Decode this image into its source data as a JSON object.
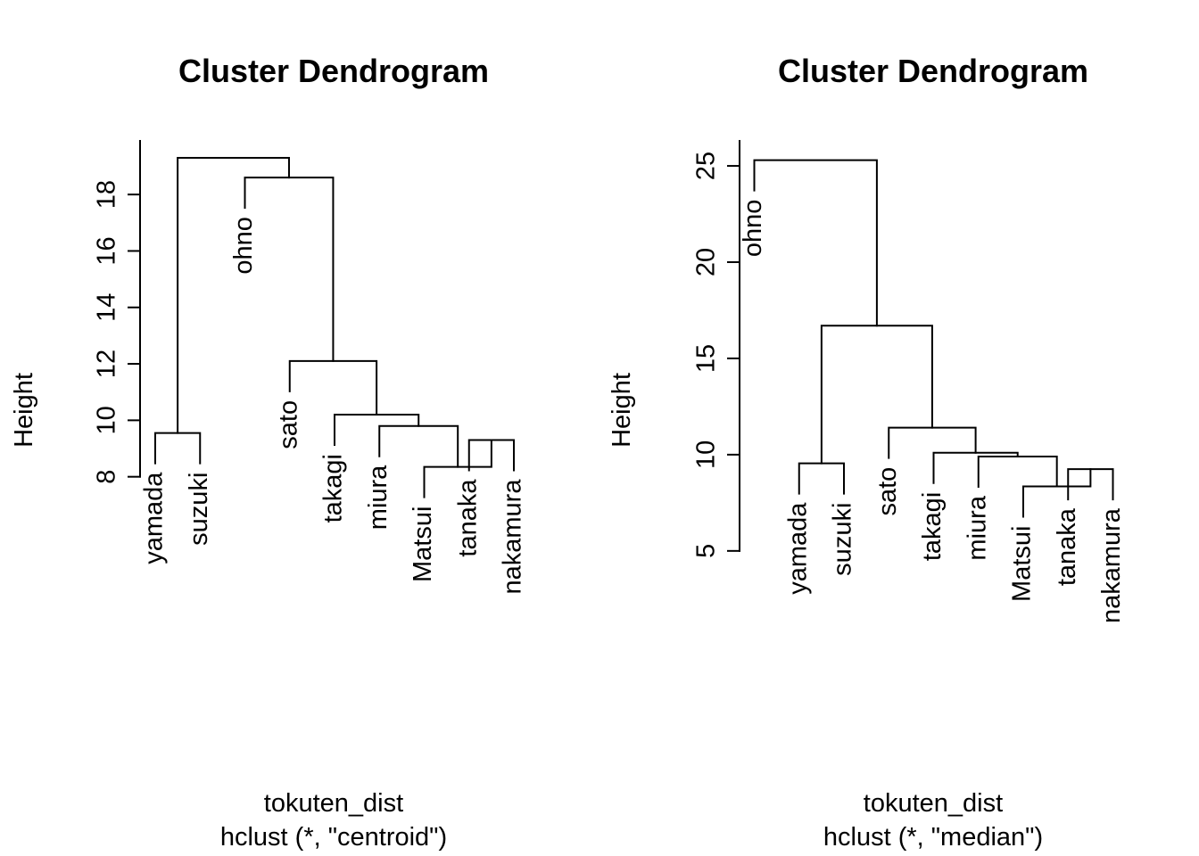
{
  "chart_data": [
    {
      "type": "dendrogram",
      "title": "Cluster Dendrogram",
      "xlabel": "tokuten_dist",
      "sub": "hclust (*, \"centroid\")",
      "ylabel": "Height",
      "yticks": [
        8,
        10,
        12,
        14,
        16,
        18
      ],
      "ylim": [
        7.2,
        19.9
      ],
      "leaves": [
        "yamada",
        "suzuki",
        "ohno",
        "sato",
        "takagi",
        "miura",
        "Matsui",
        "tanaka",
        "nakamura"
      ],
      "merges": [
        {
          "a": "tanaka",
          "b": "nakamura",
          "height": 9.3
        },
        {
          "a": "Matsui",
          "b": "m1",
          "height": 8.35
        },
        {
          "a": "yamada",
          "b": "suzuki",
          "height": 9.55
        },
        {
          "a": "miura",
          "b": "m2",
          "height": 9.8
        },
        {
          "a": "takagi",
          "b": "m4",
          "height": 10.2
        },
        {
          "a": "sato",
          "b": "m5",
          "height": 12.1
        },
        {
          "a": "ohno",
          "b": "m6",
          "height": 18.6
        },
        {
          "a": "m3",
          "b": "m7",
          "height": 19.3
        }
      ]
    },
    {
      "type": "dendrogram",
      "title": "Cluster Dendrogram",
      "xlabel": "tokuten_dist",
      "sub": "hclust (*, \"median\")",
      "ylabel": "Height",
      "yticks": [
        5,
        10,
        15,
        20,
        25
      ],
      "ylim": [
        4.9,
        26.3
      ],
      "leaves": [
        "ohno",
        "yamada",
        "suzuki",
        "sato",
        "takagi",
        "miura",
        "Matsui",
        "tanaka",
        "nakamura"
      ],
      "merges": [
        {
          "a": "tanaka",
          "b": "nakamura",
          "height": 9.25
        },
        {
          "a": "Matsui",
          "b": "m1",
          "height": 8.35
        },
        {
          "a": "yamada",
          "b": "suzuki",
          "height": 9.55
        },
        {
          "a": "miura",
          "b": "m2",
          "height": 9.9
        },
        {
          "a": "takagi",
          "b": "m4",
          "height": 10.1
        },
        {
          "a": "sato",
          "b": "m5",
          "height": 11.4
        },
        {
          "a": "m3",
          "b": "m6",
          "height": 16.7
        },
        {
          "a": "ohno",
          "b": "m7",
          "height": 25.3
        }
      ]
    }
  ]
}
